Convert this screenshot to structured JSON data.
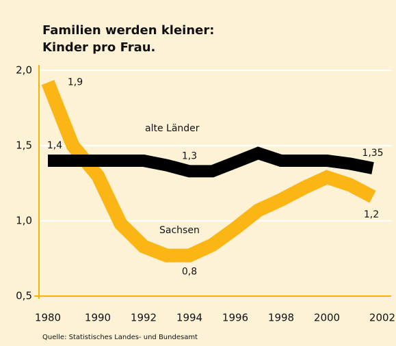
{
  "chart_data": {
    "type": "line",
    "title": [
      "Familien werden kleiner:",
      "Kinder pro Frau."
    ],
    "source": "Quelle: Statistisches Landes- und Bundesamt",
    "x": [
      1980,
      1985,
      1990,
      1991,
      1992,
      1993,
      1994,
      1995,
      1996,
      1997,
      1998,
      1999,
      2000,
      2001,
      2002
    ],
    "series": [
      {
        "name": "alte Länder",
        "color": "#000000",
        "values": [
          1.4,
          1.4,
          1.4,
          1.4,
          1.4,
          1.37,
          1.33,
          1.33,
          1.39,
          1.45,
          1.4,
          1.4,
          1.4,
          1.38,
          1.35
        ],
        "value_labels": [
          "1,4",
          null,
          null,
          null,
          null,
          null,
          "1,3",
          null,
          null,
          null,
          null,
          null,
          null,
          null,
          "1,35"
        ]
      },
      {
        "name": "Sachsen",
        "color": "#fbb616",
        "values": [
          1.92,
          1.5,
          1.3,
          0.98,
          0.83,
          0.77,
          0.77,
          0.84,
          0.95,
          1.07,
          1.14,
          1.22,
          1.29,
          1.24,
          1.16
        ],
        "value_labels": [
          "1,9",
          null,
          null,
          null,
          null,
          null,
          "0,8",
          null,
          null,
          null,
          null,
          null,
          null,
          null,
          "1,2"
        ]
      }
    ],
    "ylim": [
      0.5,
      2.0
    ],
    "yticks": [
      {
        "value": 0.5,
        "label": "0,5"
      },
      {
        "value": 1.0,
        "label": "1,0"
      },
      {
        "value": 1.5,
        "label": "1,5"
      },
      {
        "value": 2.0,
        "label": "2,0"
      }
    ],
    "xticks": [
      1980,
      1990,
      1992,
      1994,
      1996,
      1998,
      2000,
      2002
    ],
    "grid": true,
    "grid_color": "#ffffff",
    "axis_color": "#f5b400"
  }
}
